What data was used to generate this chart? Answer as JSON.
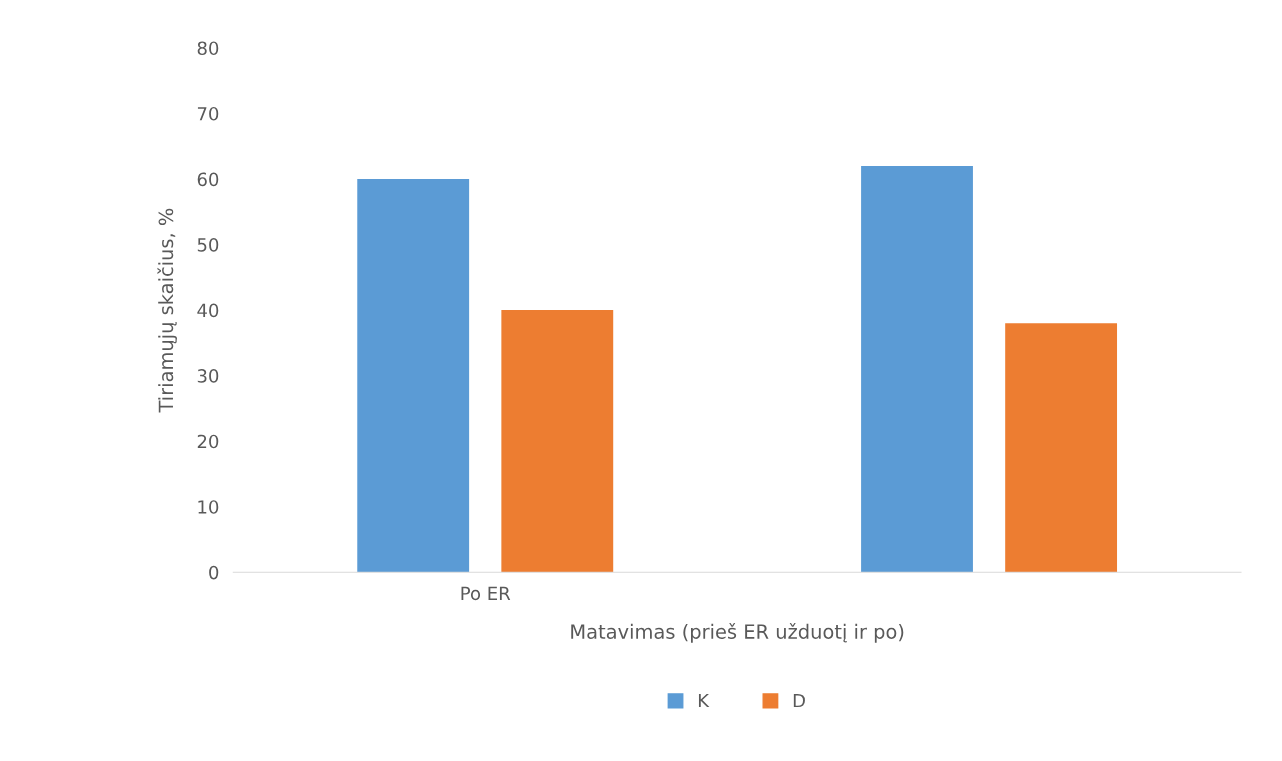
{
  "chart_data": {
    "type": "bar",
    "xlabel": "Matavimas (prieš ER užduotį ir po)",
    "ylabel": "Tiriamųjų skaičius, %",
    "categories": [
      "Po ER",
      null
    ],
    "series": [
      {
        "name": "K",
        "color": "#5b9bd5",
        "values": [
          60,
          62
        ]
      },
      {
        "name": "D",
        "color": "#ed7d31",
        "values": [
          40,
          38
        ]
      }
    ],
    "ylim": [
      0,
      80
    ],
    "yticks": [
      0,
      10,
      20,
      30,
      40,
      50,
      60,
      70,
      80
    ],
    "grid": false,
    "legend": "bottom"
  }
}
